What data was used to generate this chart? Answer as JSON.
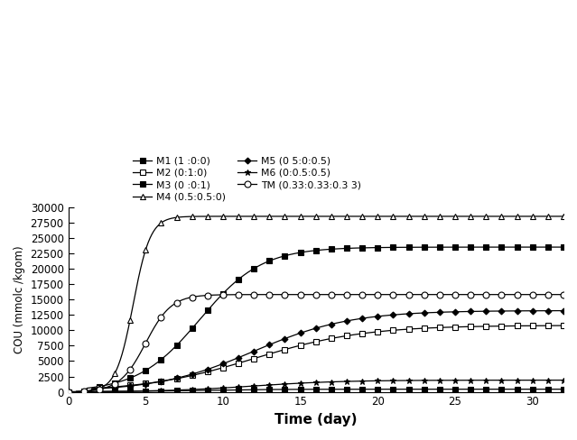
{
  "xlabel": "Time (day)",
  "ylabel": "COU (mmolc /kgom)",
  "xlim": [
    0,
    32
  ],
  "ylim": [
    0,
    30000
  ],
  "yticks": [
    0,
    2500,
    5000,
    7500,
    10000,
    12500,
    15000,
    17500,
    20000,
    22500,
    25000,
    27500,
    30000
  ],
  "xticks": [
    0,
    5,
    10,
    15,
    20,
    25,
    30
  ],
  "series": [
    {
      "label": "M1 (1 :0:0)",
      "marker": "s",
      "mfc": "black",
      "mec": "black",
      "ms": 4,
      "L": 23500,
      "k": 0.42,
      "t0": 8.5,
      "lag": 1.0,
      "rate": 3200
    },
    {
      "label": "M2 (0:1:0)",
      "marker": "s",
      "mfc": "white",
      "mec": "black",
      "ms": 4,
      "L": 10800,
      "k": 0.28,
      "t0": 11.0,
      "lag": 1.5,
      "rate": 900
    },
    {
      "label": "M3 (0 :0:1)",
      "marker": "s",
      "mfc": "black",
      "mec": "black",
      "ms": 4,
      "L": 430,
      "k": 0.4,
      "t0": 8.0,
      "lag": 1.0,
      "rate": 50
    },
    {
      "label": "M4 (0.5:0.5:0)",
      "marker": "^",
      "mfc": "white",
      "mec": "black",
      "ms": 5,
      "L": 28500,
      "k": 0.55,
      "t0": 5.0,
      "lag": 0.5,
      "rate": 8000
    },
    {
      "label": "M5 (0 5:0:0.5)",
      "marker": "D",
      "mfc": "black",
      "mec": "black",
      "ms": 4,
      "L": 13200,
      "k": 0.32,
      "t0": 11.0,
      "lag": 1.5,
      "rate": 1000
    },
    {
      "label": "M6 (0:0.5:0.5)",
      "marker": "*",
      "mfc": "black",
      "mec": "black",
      "ms": 5,
      "L": 1900,
      "k": 0.35,
      "t0": 11.0,
      "lag": 1.5,
      "rate": 130
    },
    {
      "label": "TM (0.33:0.33:0.3 3)",
      "marker": "o",
      "mfc": "white",
      "mec": "black",
      "ms": 5,
      "L": 15800,
      "k": 0.65,
      "t0": 6.0,
      "lag": 0.5,
      "rate": 5000
    }
  ],
  "legend_col1": [
    0,
    2,
    4,
    6
  ],
  "legend_col2": [
    1,
    3,
    5
  ]
}
